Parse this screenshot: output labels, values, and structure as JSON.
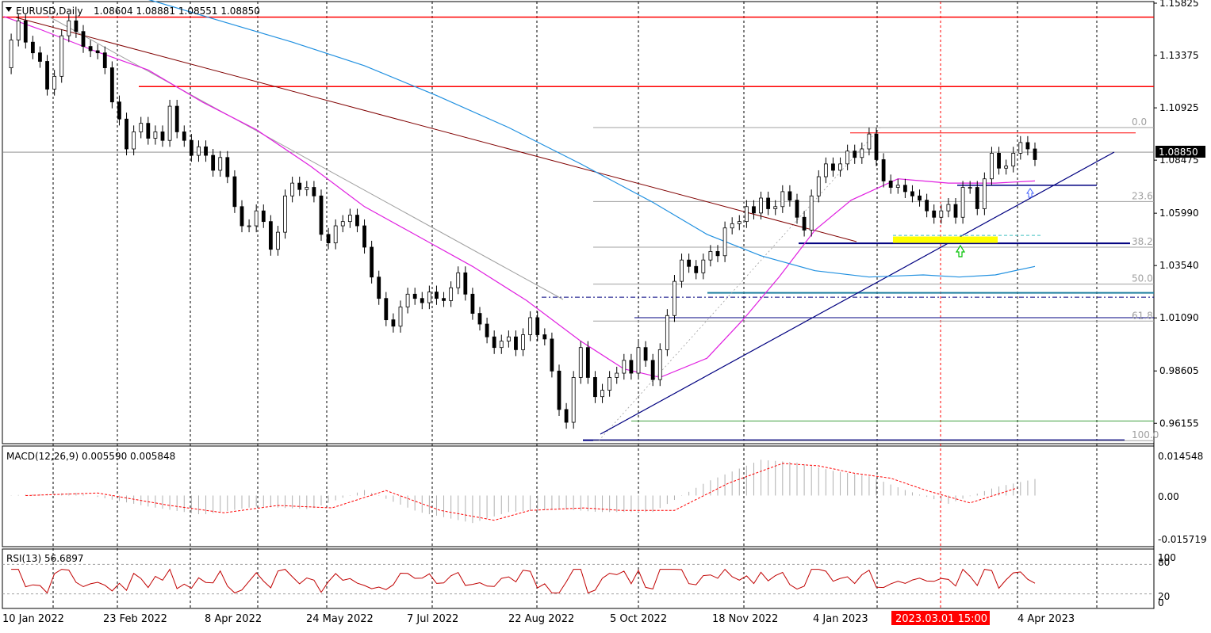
{
  "header": {
    "symbol_label": "EURUSD,Daily",
    "ohlc_label": "1.08604 1.08881 1.08551 1.08850",
    "dropdown_icon": "triangle-down-icon"
  },
  "macd": {
    "label": "MACD(12,26,9) 0.005590 0.005848",
    "axis_labels": [
      "0.014548",
      "0.00",
      "-0.015719"
    ]
  },
  "rsi": {
    "label": "RSI(13) 56.6897",
    "axis_labels": [
      "100",
      "80",
      "20",
      "0"
    ]
  },
  "current_price": "1.08850",
  "crosshair_time": "2023.03.01 15:00",
  "fib_labels": [
    "0.0",
    "23.6",
    "38.2",
    "50.0",
    "61.8",
    "100.0"
  ],
  "colors": {
    "price_line": "#000000",
    "resistance": "#ff0000",
    "ma_fast": "#e020e0",
    "ma_slow": "#2090e0",
    "trend_down": "#800000",
    "trend_up": "#000080",
    "zone": "#ffff00",
    "macd_signal": "#ff0000",
    "rsi_line": "#c00000",
    "crosshair_badge": "#ff0000"
  },
  "chart_data": {
    "type": "line",
    "symbol": "EURUSD",
    "timeframe": "Daily",
    "x_ticks": [
      "10 Jan 2022",
      "23 Feb 2022",
      "8 Apr 2022",
      "24 May 2022",
      "7 Jul 2022",
      "22 Aug 2022",
      "5 Oct 2022",
      "18 Nov 2022",
      "4 Jan 2023",
      "4 Apr 2023"
    ],
    "y_ticks": [
      "1.15825",
      "1.13375",
      "1.10925",
      "1.08475",
      "1.05990",
      "1.03540",
      "1.01090",
      "0.98605",
      "0.96155"
    ],
    "ylim": [
      0.952,
      1.159
    ],
    "series": [
      {
        "values": [
          [
            0,
            1.128
          ],
          [
            2,
            1.141
          ],
          [
            4,
            1.15
          ],
          [
            6,
            1.14
          ],
          [
            8,
            1.135
          ],
          [
            10,
            1.131
          ],
          [
            12,
            1.118
          ],
          [
            14,
            1.124
          ],
          [
            16,
            1.143
          ],
          [
            18,
            1.15
          ],
          [
            20,
            1.145
          ],
          [
            22,
            1.138
          ],
          [
            24,
            1.136
          ],
          [
            26,
            1.135
          ],
          [
            28,
            1.128
          ],
          [
            30,
            1.112
          ],
          [
            32,
            1.104
          ],
          [
            34,
            1.09
          ],
          [
            36,
            1.098
          ],
          [
            38,
            1.102
          ],
          [
            40,
            1.095
          ],
          [
            42,
            1.098
          ],
          [
            44,
            1.094
          ],
          [
            46,
            1.11
          ],
          [
            48,
            1.098
          ],
          [
            50,
            1.094
          ],
          [
            52,
            1.087
          ],
          [
            54,
            1.091
          ],
          [
            56,
            1.087
          ],
          [
            58,
            1.08
          ],
          [
            60,
            1.086
          ],
          [
            62,
            1.077
          ],
          [
            64,
            1.063
          ],
          [
            66,
            1.054
          ],
          [
            68,
            1.054
          ],
          [
            70,
            1.061
          ],
          [
            72,
            1.056
          ],
          [
            74,
            1.043
          ],
          [
            76,
            1.051
          ],
          [
            78,
            1.068
          ],
          [
            80,
            1.074
          ],
          [
            82,
            1.071
          ],
          [
            84,
            1.072
          ],
          [
            86,
            1.068
          ],
          [
            88,
            1.05
          ],
          [
            90,
            1.046
          ],
          [
            92,
            1.054
          ],
          [
            94,
            1.056
          ],
          [
            96,
            1.059
          ],
          [
            98,
            1.054
          ],
          [
            100,
            1.044
          ],
          [
            102,
            1.03
          ],
          [
            104,
            1.02
          ],
          [
            106,
            1.01
          ],
          [
            108,
            1.007
          ],
          [
            110,
            1.016
          ],
          [
            112,
            1.022
          ],
          [
            114,
            1.02
          ],
          [
            116,
            1.018
          ],
          [
            118,
            1.023
          ],
          [
            120,
            1.02
          ],
          [
            122,
            1.019
          ],
          [
            124,
            1.025
          ],
          [
            126,
            1.032
          ],
          [
            128,
            1.022
          ],
          [
            130,
            1.013
          ],
          [
            132,
            1.008
          ],
          [
            134,
            1.002
          ],
          [
            136,
            0.997
          ],
          [
            138,
            1.0
          ],
          [
            140,
            1.002
          ],
          [
            142,
            0.996
          ],
          [
            144,
            1.003
          ],
          [
            146,
            1.011
          ],
          [
            148,
            1.003
          ],
          [
            150,
            1.001
          ],
          [
            152,
            0.986
          ],
          [
            154,
            0.968
          ],
          [
            156,
            0.962
          ],
          [
            158,
            0.983
          ],
          [
            160,
            0.997
          ],
          [
            162,
            0.983
          ],
          [
            164,
            0.974
          ],
          [
            166,
            0.977
          ],
          [
            168,
            0.983
          ],
          [
            170,
            0.985
          ],
          [
            172,
            0.991
          ],
          [
            174,
            0.985
          ],
          [
            176,
            0.997
          ],
          [
            178,
            0.991
          ],
          [
            180,
            0.982
          ],
          [
            182,
            0.996
          ],
          [
            184,
            1.012
          ],
          [
            186,
            1.028
          ],
          [
            188,
            1.038
          ],
          [
            190,
            1.035
          ],
          [
            192,
            1.032
          ],
          [
            194,
            1.038
          ],
          [
            196,
            1.042
          ],
          [
            198,
            1.04
          ],
          [
            200,
            1.053
          ],
          [
            202,
            1.055
          ],
          [
            204,
            1.056
          ],
          [
            206,
            1.063
          ],
          [
            208,
            1.06
          ],
          [
            210,
            1.067
          ],
          [
            212,
            1.062
          ],
          [
            214,
            1.063
          ],
          [
            216,
            1.07
          ],
          [
            218,
            1.066
          ],
          [
            220,
            1.058
          ],
          [
            222,
            1.052
          ],
          [
            224,
            1.068
          ],
          [
            226,
            1.077
          ],
          [
            228,
            1.083
          ],
          [
            230,
            1.08
          ],
          [
            232,
            1.083
          ],
          [
            234,
            1.089
          ],
          [
            236,
            1.086
          ],
          [
            238,
            1.09
          ],
          [
            240,
            1.097
          ],
          [
            242,
            1.085
          ],
          [
            244,
            1.075
          ],
          [
            246,
            1.072
          ],
          [
            248,
            1.073
          ],
          [
            250,
            1.07
          ],
          [
            252,
            1.068
          ],
          [
            254,
            1.066
          ],
          [
            256,
            1.061
          ],
          [
            258,
            1.058
          ],
          [
            260,
            1.061
          ],
          [
            262,
            1.064
          ],
          [
            264,
            1.058
          ],
          [
            266,
            1.072
          ],
          [
            268,
            1.072
          ],
          [
            270,
            1.062
          ],
          [
            272,
            1.076
          ],
          [
            274,
            1.088
          ],
          [
            276,
            1.081
          ],
          [
            278,
            1.082
          ],
          [
            280,
            1.088
          ],
          [
            282,
            1.093
          ],
          [
            284,
            1.09
          ],
          [
            286,
            1.085
          ]
        ]
      }
    ],
    "horizontal_levels": [
      1.1517,
      1.1192,
      1.0975
    ],
    "fibonacci": {
      "high": 1.1,
      "low": 0.9534,
      "levels": [
        {
          "label": "0.0",
          "value": 1.1
        },
        {
          "label": "23.6",
          "value": 1.0654
        },
        {
          "label": "38.2",
          "value": 1.044
        },
        {
          "label": "50.0",
          "value": 1.0267
        },
        {
          "label": "61.8",
          "value": 1.0094
        },
        {
          "label": "100.0",
          "value": 0.9534
        }
      ]
    },
    "support_levels": [
      1.0458,
      1.0226,
      1.0206,
      1.011,
      0.9626,
      0.9536,
      1.073
    ],
    "grid": true
  }
}
